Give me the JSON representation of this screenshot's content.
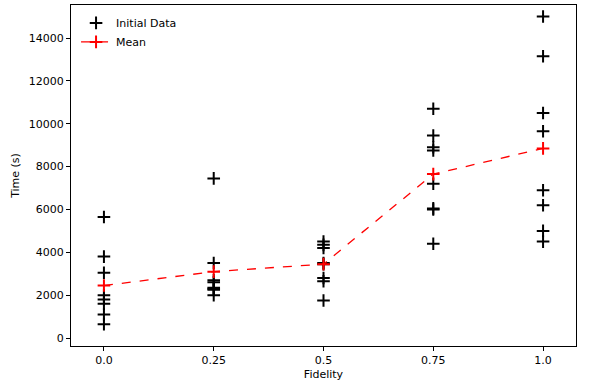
{
  "chart_data": {
    "type": "scatter",
    "x_label": "Fidelity",
    "y_label": "Time (s)",
    "xlim": [
      -0.075,
      1.075
    ],
    "xticks": [
      {
        "value": 0,
        "label": "0.0"
      },
      0.25,
      0.5,
      0.75,
      {
        "value": 1,
        "label": "1.0"
      }
    ],
    "ylim": [
      -370,
      15540
    ],
    "yticks": [
      0,
      2000,
      4000,
      6000,
      8000,
      10000,
      12000,
      14000
    ],
    "grid": false,
    "legend": "upper left",
    "series": [
      {
        "name": "Initial Data",
        "color": "#000000",
        "marker": "plus",
        "line_style": "none",
        "x": [
          0,
          0,
          0,
          0,
          0,
          0,
          0,
          0,
          0.25,
          0.25,
          0.25,
          0.25,
          0.25,
          0.25,
          0.25,
          0.25,
          0.5,
          0.5,
          0.5,
          0.5,
          0.5,
          0.5,
          0.5,
          0.5,
          0.75,
          0.75,
          0.75,
          0.75,
          0.75,
          0.75,
          0.75,
          0.75,
          1,
          1,
          1,
          1,
          1,
          1,
          1,
          1
        ],
        "values": [
          5650,
          3800,
          3050,
          2000,
          1800,
          1600,
          1100,
          650,
          7450,
          3500,
          2700,
          2600,
          2350,
          2300,
          2250,
          2000,
          4500,
          4350,
          4200,
          3500,
          3450,
          2800,
          2650,
          1750,
          10700,
          9450,
          8900,
          8750,
          7200,
          6050,
          6000,
          4400,
          15000,
          13150,
          10500,
          9650,
          6900,
          6200,
          5000,
          4500
        ]
      },
      {
        "name": "Mean",
        "color": "#ff0000",
        "marker": "plus",
        "line_style": "dashed",
        "x": [
          0,
          0.25,
          0.5,
          0.75,
          1
        ],
        "values": [
          2450,
          3100,
          3450,
          7650,
          8850
        ]
      }
    ]
  }
}
